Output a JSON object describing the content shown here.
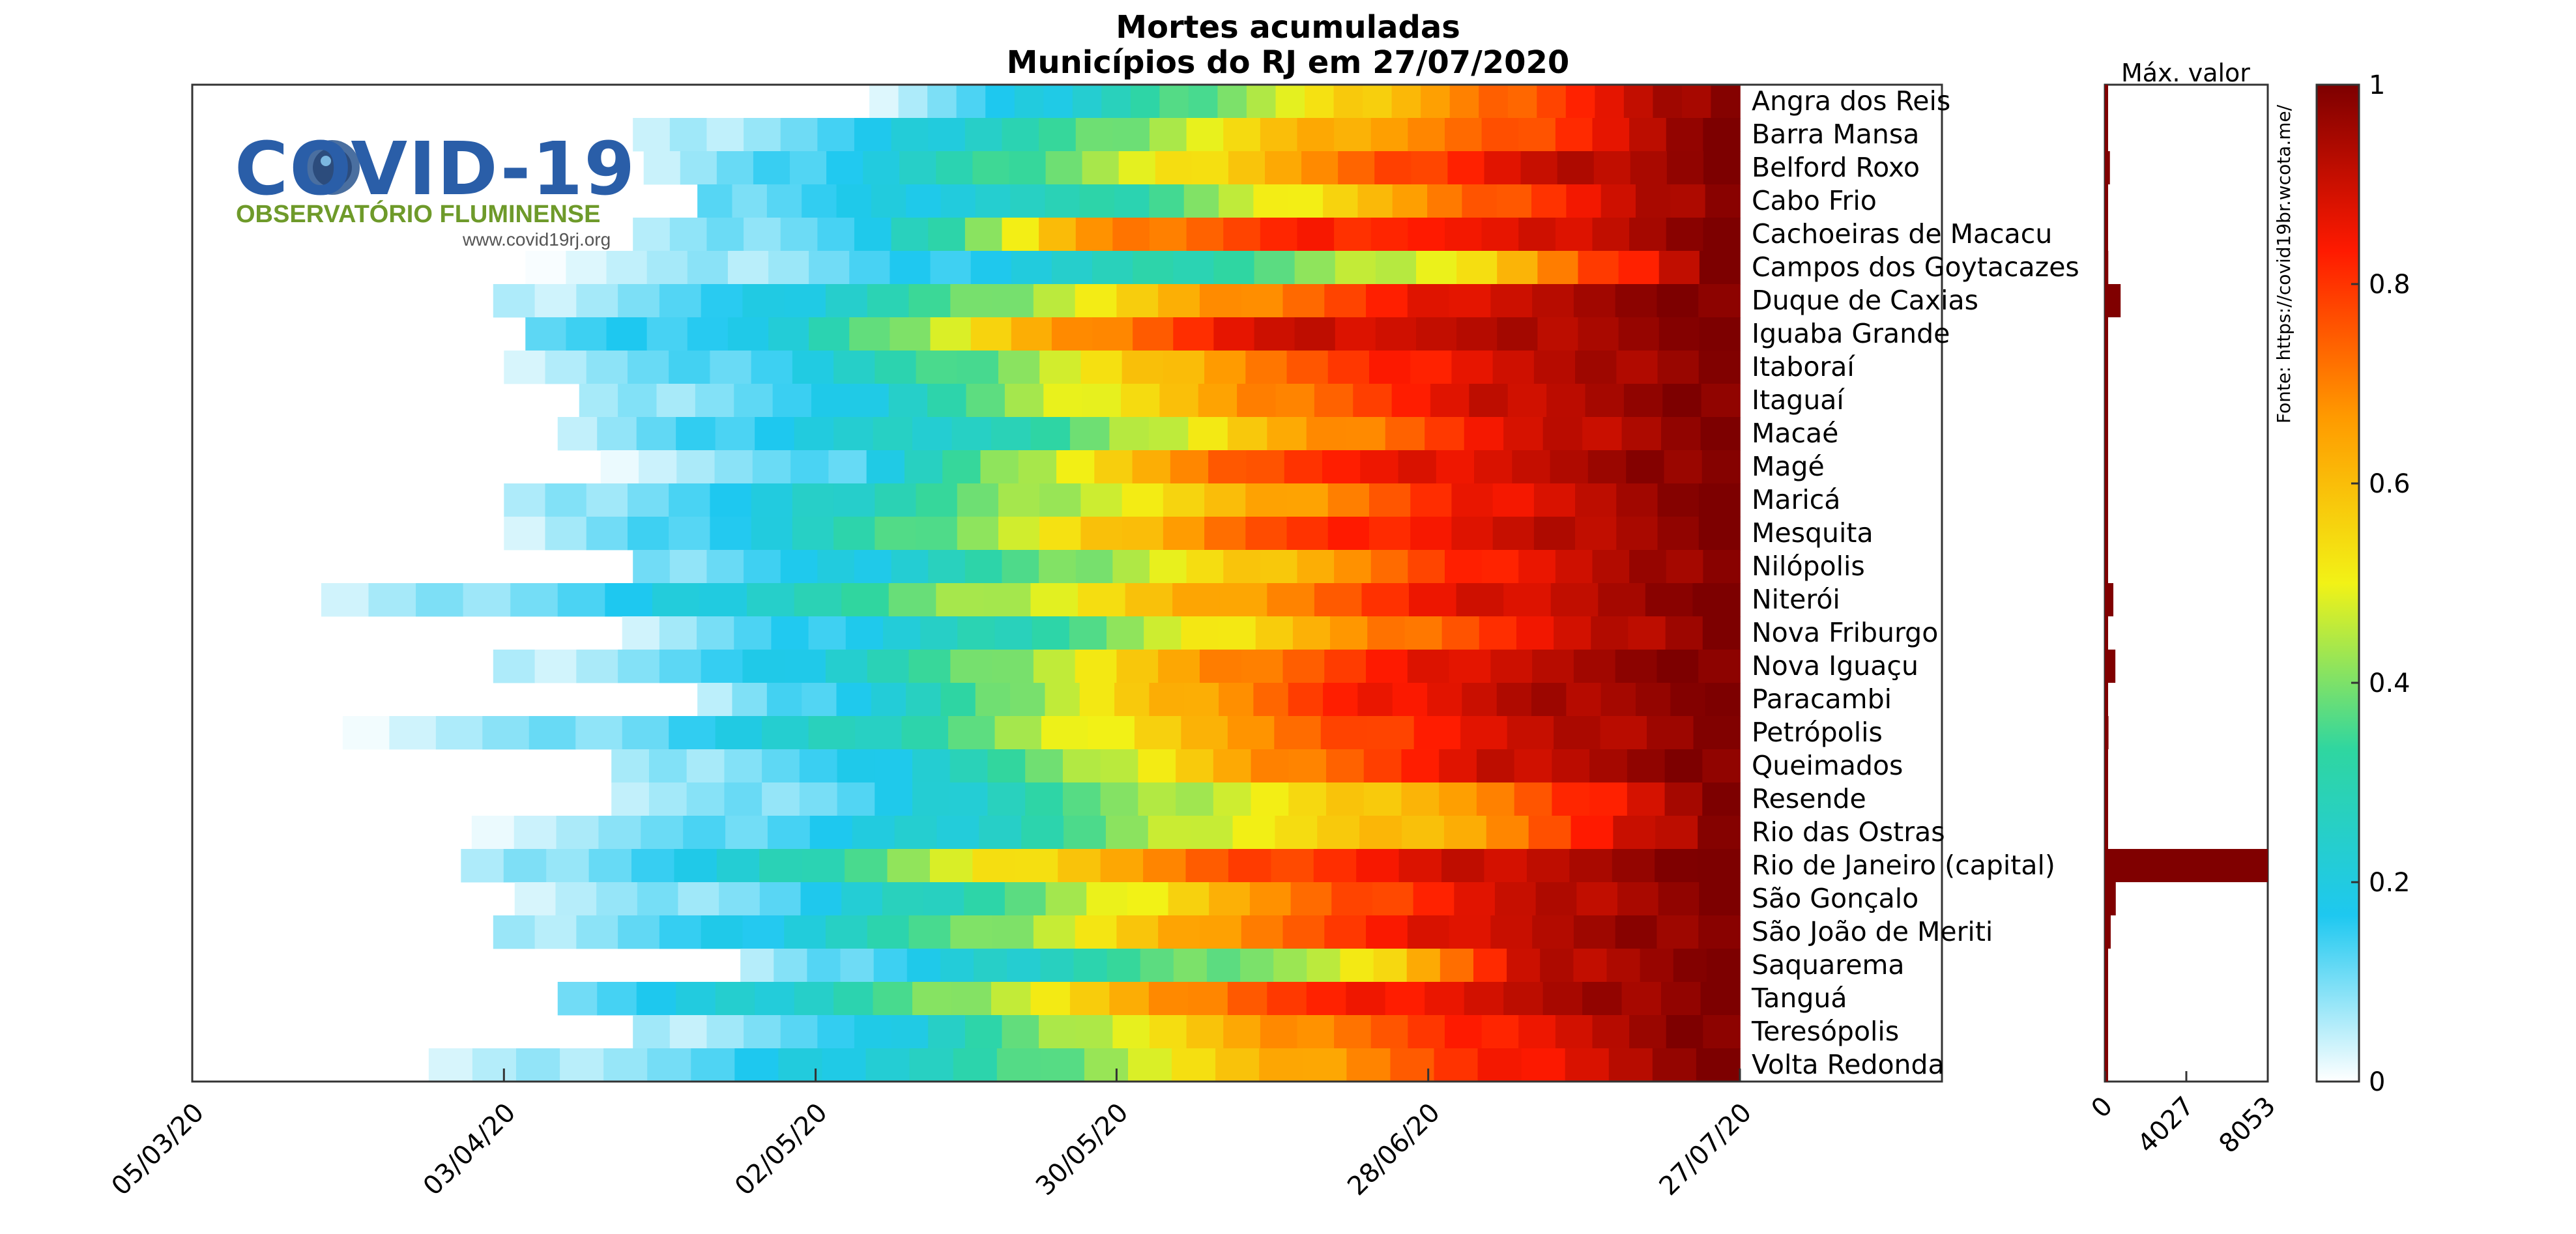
{
  "title_line1": "Mortes acumuladas",
  "title_line2": "Municípios do RJ em 27/07/2020",
  "logo": {
    "name": "COVID-19",
    "subtitle": "OBSERVATÓRIO FLUMINENSE",
    "website": "www.covid19rj.org"
  },
  "source_text": "Fonte: https://covid19br.wcota.me/",
  "max_panel_label": "Máx. valor",
  "chart_data": [
    {
      "type": "heatmap",
      "title": "Mortes acumuladas",
      "subtitle": "Municípios do RJ em 27/07/2020",
      "x_tick_labels": [
        "05/03/20",
        "03/04/20",
        "02/05/20",
        "30/05/20",
        "28/06/20",
        "27/07/20"
      ],
      "x_range": [
        "05/03/20",
        "27/07/20"
      ],
      "value_range": [
        0,
        1
      ],
      "colorbar_ticks": [
        0,
        0.2,
        0.4,
        0.6,
        0.8,
        1
      ],
      "colormap": [
        "#ffffff",
        "#1ec8f0",
        "#2fd6a0",
        "#f2f216",
        "#ff9a00",
        "#ff1a00",
        "#7d0000"
      ],
      "rows": [
        {
          "name": "Angra dos Reis",
          "first_death": "07/05/20",
          "p": [
            0.05,
            0.2,
            0.4,
            0.6,
            0.8,
            1
          ]
        },
        {
          "name": "Barra Mansa",
          "first_death": "15/04/20",
          "p": [
            0.03,
            0.15,
            0.35,
            0.6,
            0.75,
            1
          ]
        },
        {
          "name": "Belford Roxo",
          "first_death": "16/04/20",
          "p": [
            0.05,
            0.2,
            0.42,
            0.66,
            0.88,
            1
          ]
        },
        {
          "name": "Cabo Frio",
          "first_death": "21/04/20",
          "p": [
            0.1,
            0.2,
            0.3,
            0.55,
            0.78,
            1
          ]
        },
        {
          "name": "Cachoeiras de Macacu",
          "first_death": "15/04/20",
          "p": [
            0.05,
            0.15,
            0.65,
            0.82,
            0.85,
            1
          ]
        },
        {
          "name": "Campos dos Goytacazes",
          "first_death": "05/04/20",
          "p": [
            0.02,
            0.08,
            0.2,
            0.35,
            0.55,
            1
          ]
        },
        {
          "name": "Duque de Caxias",
          "first_death": "02/04/20",
          "p": [
            0.04,
            0.16,
            0.4,
            0.68,
            0.9,
            1
          ]
        },
        {
          "name": "Iguaba Grande",
          "first_death": "05/04/20",
          "p": [
            0.12,
            0.2,
            0.6,
            0.88,
            0.92,
            1
          ]
        },
        {
          "name": "Itaboraí",
          "first_death": "03/04/20",
          "p": [
            0.05,
            0.15,
            0.4,
            0.7,
            0.88,
            1
          ]
        },
        {
          "name": "Itaguaí",
          "first_death": "10/04/20",
          "p": [
            0.05,
            0.15,
            0.45,
            0.7,
            0.9,
            1
          ]
        },
        {
          "name": "Macaé",
          "first_death": "08/04/20",
          "p": [
            0.05,
            0.2,
            0.3,
            0.6,
            0.85,
            1
          ]
        },
        {
          "name": "Magé",
          "first_death": "12/04/20",
          "p": [
            0.04,
            0.12,
            0.5,
            0.8,
            0.9,
            1
          ]
        },
        {
          "name": "Maricá",
          "first_death": "03/04/20",
          "p": [
            0.05,
            0.18,
            0.4,
            0.6,
            0.85,
            1
          ]
        },
        {
          "name": "Mesquita",
          "first_death": "03/04/20",
          "p": [
            0.04,
            0.2,
            0.45,
            0.75,
            0.88,
            1
          ]
        },
        {
          "name": "Nilópolis",
          "first_death": "15/04/20",
          "p": [
            0.08,
            0.2,
            0.4,
            0.62,
            0.85,
            1
          ]
        },
        {
          "name": "Niterói",
          "first_death": "17/03/20",
          "p": [
            0.03,
            0.15,
            0.35,
            0.6,
            0.85,
            1
          ]
        },
        {
          "name": "Nova Friburgo",
          "first_death": "14/04/20",
          "p": [
            0.05,
            0.18,
            0.35,
            0.6,
            0.82,
            1
          ]
        },
        {
          "name": "Nova Iguaçu",
          "first_death": "02/04/20",
          "p": [
            0.04,
            0.15,
            0.4,
            0.7,
            0.9,
            1
          ]
        },
        {
          "name": "Paracambi",
          "first_death": "21/04/20",
          "p": [
            0.05,
            0.25,
            0.55,
            0.8,
            0.93,
            1
          ]
        },
        {
          "name": "Petrópolis",
          "first_death": "19/03/20",
          "p": [
            0.03,
            0.12,
            0.3,
            0.6,
            0.85,
            1
          ]
        },
        {
          "name": "Queimados",
          "first_death": "13/04/20",
          "p": [
            0.05,
            0.15,
            0.4,
            0.7,
            0.9,
            1
          ]
        },
        {
          "name": "Resende",
          "first_death": "13/04/20",
          "p": [
            0.05,
            0.12,
            0.35,
            0.52,
            0.7,
            1
          ]
        },
        {
          "name": "Rio das Ostras",
          "first_death": "31/03/20",
          "p": [
            0.04,
            0.12,
            0.25,
            0.5,
            0.65,
            1
          ]
        },
        {
          "name": "Rio de Janeiro (capital)",
          "first_death": "30/03/20",
          "p": [
            0.05,
            0.2,
            0.5,
            0.75,
            0.9,
            1
          ]
        },
        {
          "name": "São Gonçalo",
          "first_death": "04/04/20",
          "p": [
            0.04,
            0.12,
            0.35,
            0.65,
            0.88,
            1
          ]
        },
        {
          "name": "São João de Meriti",
          "first_death": "02/04/20",
          "p": [
            0.05,
            0.18,
            0.4,
            0.7,
            0.9,
            1
          ]
        },
        {
          "name": "Saquarema",
          "first_death": "25/04/20",
          "p": [
            0.05,
            0.2,
            0.35,
            0.45,
            0.9,
            1
          ]
        },
        {
          "name": "Tanguá",
          "first_death": "08/04/20",
          "p": [
            0.12,
            0.25,
            0.5,
            0.78,
            0.9,
            1
          ]
        },
        {
          "name": "Teresópolis",
          "first_death": "15/04/20",
          "p": [
            0.05,
            0.15,
            0.45,
            0.68,
            0.85,
            1
          ]
        },
        {
          "name": "Volta Redonda",
          "first_death": "27/03/20",
          "p": [
            0.03,
            0.12,
            0.28,
            0.55,
            0.8,
            1
          ]
        }
      ]
    },
    {
      "type": "bar",
      "orientation": "horizontal",
      "title": "Máx. valor",
      "x_tick_labels": [
        "0",
        "4027",
        "8053"
      ],
      "xlim": [
        0,
        8053
      ],
      "color": "#800000",
      "categories": [
        "Angra dos Reis",
        "Barra Mansa",
        "Belford Roxo",
        "Cabo Frio",
        "Cachoeiras de Macacu",
        "Campos dos Goytacazes",
        "Duque de Caxias",
        "Iguaba Grande",
        "Itaboraí",
        "Itaguaí",
        "Macaé",
        "Magé",
        "Maricá",
        "Mesquita",
        "Nilópolis",
        "Niterói",
        "Nova Friburgo",
        "Nova Iguaçu",
        "Paracambi",
        "Petrópolis",
        "Queimados",
        "Resende",
        "Rio das Ostras",
        "Rio de Janeiro (capital)",
        "São Gonçalo",
        "São João de Meriti",
        "Saquarema",
        "Tanguá",
        "Teresópolis",
        "Volta Redonda"
      ],
      "values": [
        50,
        60,
        250,
        60,
        5,
        170,
        780,
        10,
        160,
        90,
        120,
        160,
        40,
        140,
        120,
        420,
        60,
        520,
        20,
        180,
        100,
        30,
        40,
        8053,
        540,
        290,
        20,
        10,
        100,
        110
      ]
    },
    {
      "type": "colorbar",
      "ticks": [
        "0",
        "0.2",
        "0.4",
        "0.6",
        "0.8",
        "1"
      ],
      "range": [
        0,
        1
      ]
    }
  ]
}
